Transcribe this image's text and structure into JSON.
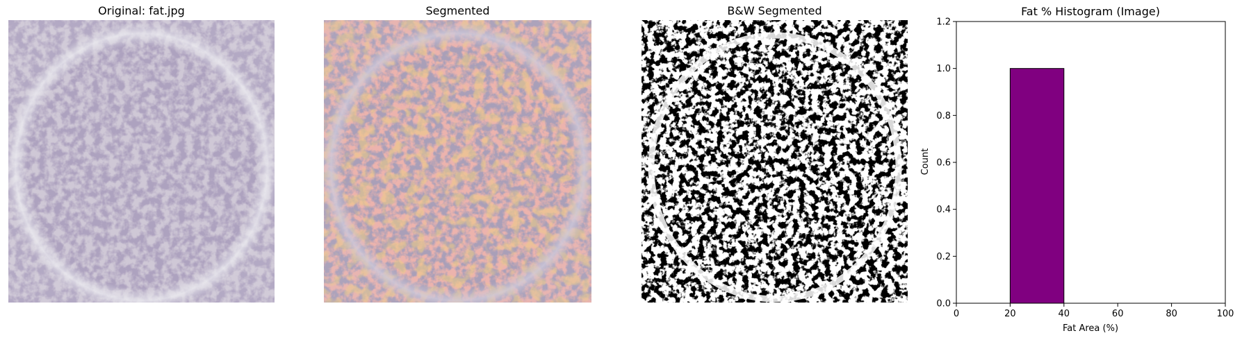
{
  "panels": {
    "original": {
      "title": "Original: fat.jpg"
    },
    "segmented": {
      "title": "Segmented"
    },
    "bw": {
      "title": "B&W Segmented"
    },
    "histogram": {
      "title": "Fat % Histogram (Image)"
    }
  },
  "chart_data": {
    "type": "bar",
    "title": "Fat % Histogram (Image)",
    "xlabel": "Fat Area (%)",
    "ylabel": "Count",
    "xlim": [
      0,
      100
    ],
    "ylim": [
      0,
      1.2
    ],
    "xticks": [
      0,
      20,
      40,
      60,
      80,
      100
    ],
    "yticks": [
      0.0,
      0.2,
      0.4,
      0.6,
      0.8,
      1.0,
      1.2
    ],
    "bins": [
      {
        "x0": 20,
        "x1": 40,
        "count": 1
      }
    ],
    "bar_color": "#800080",
    "grid": false
  }
}
